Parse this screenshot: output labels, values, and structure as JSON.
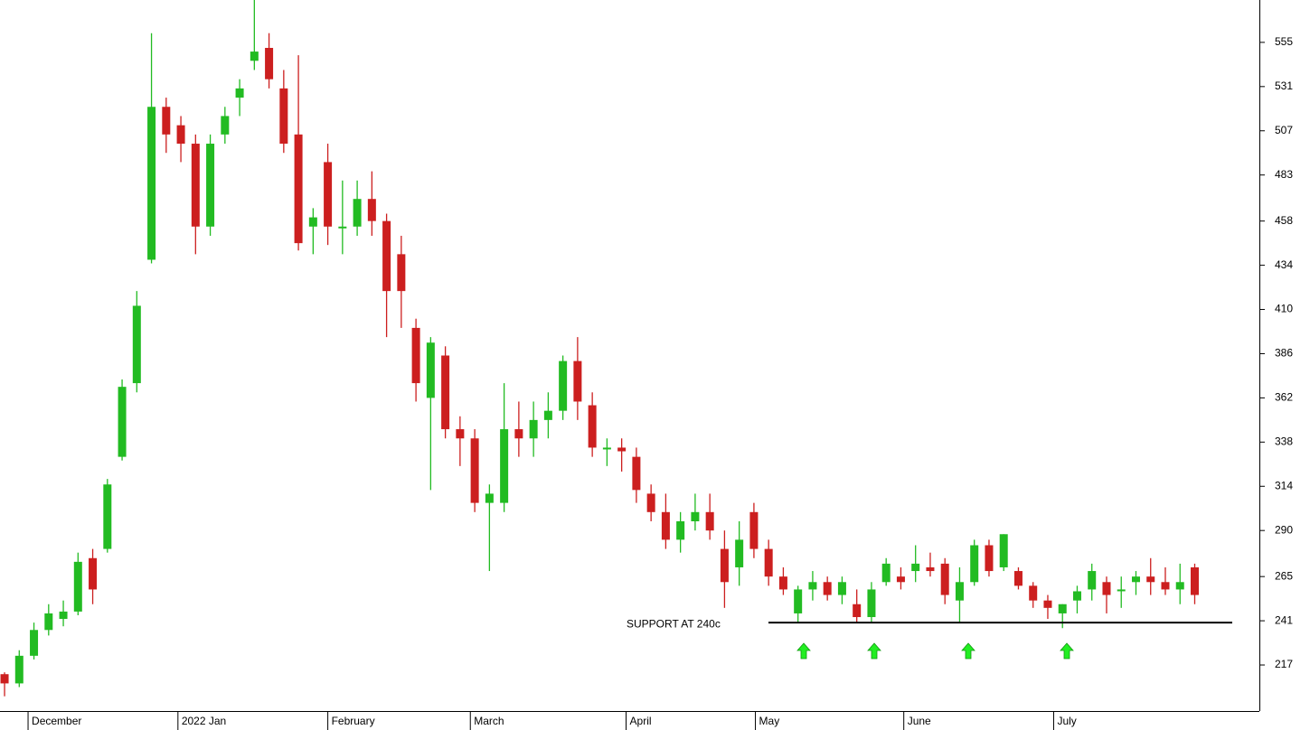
{
  "chart_data": {
    "type": "candlestick",
    "annotation": "SUPPORT AT 240c",
    "support_level": 240,
    "up_color": "#22bb22",
    "down_color": "#cc1f1f",
    "ylim": [
      192,
      578
    ],
    "yticks": [
      217,
      241,
      265,
      290,
      314,
      338,
      362,
      386,
      410,
      434,
      458,
      483,
      507,
      531,
      555
    ],
    "xlim": [
      -0.31,
      85.4
    ],
    "xticks": [
      {
        "value": 1.6,
        "label": "December"
      },
      {
        "value": 11.8,
        "label": "2022 Jan"
      },
      {
        "value": 22,
        "label": "February"
      },
      {
        "value": 31.7,
        "label": "March"
      },
      {
        "value": 42.3,
        "label": "April"
      },
      {
        "value": 51.1,
        "label": "May"
      },
      {
        "value": 61.2,
        "label": "June"
      },
      {
        "value": 71.4,
        "label": "July"
      }
    ],
    "ohlc": [
      [
        212,
        213,
        200,
        207
      ],
      [
        207,
        225,
        205,
        222
      ],
      [
        222,
        240,
        220,
        236
      ],
      [
        236,
        250,
        233,
        245
      ],
      [
        242,
        252,
        238,
        246
      ],
      [
        246,
        278,
        244,
        273
      ],
      [
        275,
        280,
        250,
        258
      ],
      [
        280,
        318,
        278,
        315
      ],
      [
        330,
        372,
        328,
        368
      ],
      [
        370,
        420,
        365,
        412
      ],
      [
        437,
        560,
        435,
        520
      ],
      [
        520,
        525,
        495,
        505
      ],
      [
        510,
        515,
        490,
        500
      ],
      [
        500,
        505,
        440,
        455
      ],
      [
        455,
        505,
        450,
        500
      ],
      [
        505,
        520,
        500,
        515
      ],
      [
        525,
        535,
        515,
        530
      ],
      [
        545,
        578,
        540,
        550
      ],
      [
        552,
        560,
        530,
        535
      ],
      [
        530,
        540,
        495,
        500
      ],
      [
        505,
        548,
        442,
        446
      ],
      [
        455,
        465,
        440,
        460
      ],
      [
        490,
        500,
        445,
        455
      ],
      [
        455,
        480,
        440,
        455
      ],
      [
        455,
        480,
        450,
        470
      ],
      [
        470,
        485,
        450,
        458
      ],
      [
        458,
        462,
        395,
        420
      ],
      [
        440,
        450,
        400,
        420
      ],
      [
        400,
        405,
        360,
        370
      ],
      [
        362,
        395,
        312,
        392
      ],
      [
        385,
        390,
        340,
        345
      ],
      [
        345,
        352,
        325,
        340
      ],
      [
        340,
        345,
        300,
        305
      ],
      [
        305,
        315,
        268,
        310
      ],
      [
        305,
        370,
        300,
        345
      ],
      [
        345,
        360,
        330,
        340
      ],
      [
        340,
        360,
        330,
        350
      ],
      [
        350,
        365,
        340,
        355
      ],
      [
        355,
        385,
        350,
        382
      ],
      [
        382,
        395,
        350,
        360
      ],
      [
        358,
        365,
        330,
        335
      ],
      [
        335,
        340,
        325,
        335
      ],
      [
        335,
        340,
        322,
        333
      ],
      [
        330,
        335,
        305,
        312
      ],
      [
        310,
        315,
        295,
        300
      ],
      [
        300,
        310,
        280,
        285
      ],
      [
        285,
        300,
        278,
        295
      ],
      [
        295,
        310,
        290,
        300
      ],
      [
        300,
        310,
        285,
        290
      ],
      [
        280,
        290,
        248,
        262
      ],
      [
        270,
        295,
        260,
        285
      ],
      [
        300,
        305,
        275,
        280
      ],
      [
        280,
        285,
        260,
        265
      ],
      [
        265,
        270,
        255,
        258
      ],
      [
        245,
        260,
        240,
        258
      ],
      [
        258,
        268,
        252,
        262
      ],
      [
        262,
        265,
        252,
        255
      ],
      [
        255,
        265,
        250,
        262
      ],
      [
        250,
        258,
        240,
        243
      ],
      [
        243,
        262,
        240,
        258
      ],
      [
        262,
        275,
        260,
        272
      ],
      [
        265,
        270,
        258,
        262
      ],
      [
        268,
        282,
        262,
        272
      ],
      [
        270,
        278,
        265,
        268
      ],
      [
        272,
        275,
        250,
        255
      ],
      [
        252,
        270,
        240,
        262
      ],
      [
        262,
        285,
        260,
        282
      ],
      [
        282,
        285,
        265,
        268
      ],
      [
        270,
        288,
        268,
        288
      ],
      [
        268,
        270,
        258,
        260
      ],
      [
        260,
        262,
        248,
        252
      ],
      [
        252,
        255,
        242,
        248
      ],
      [
        245,
        250,
        237,
        250
      ],
      [
        252,
        260,
        245,
        257
      ],
      [
        258,
        272,
        252,
        268
      ],
      [
        262,
        265,
        245,
        255
      ],
      [
        258,
        265,
        248,
        258
      ],
      [
        262,
        268,
        255,
        265
      ],
      [
        265,
        275,
        255,
        262
      ],
      [
        262,
        270,
        255,
        258
      ],
      [
        258,
        272,
        250,
        262
      ],
      [
        270,
        272,
        250,
        255
      ]
    ]
  }
}
